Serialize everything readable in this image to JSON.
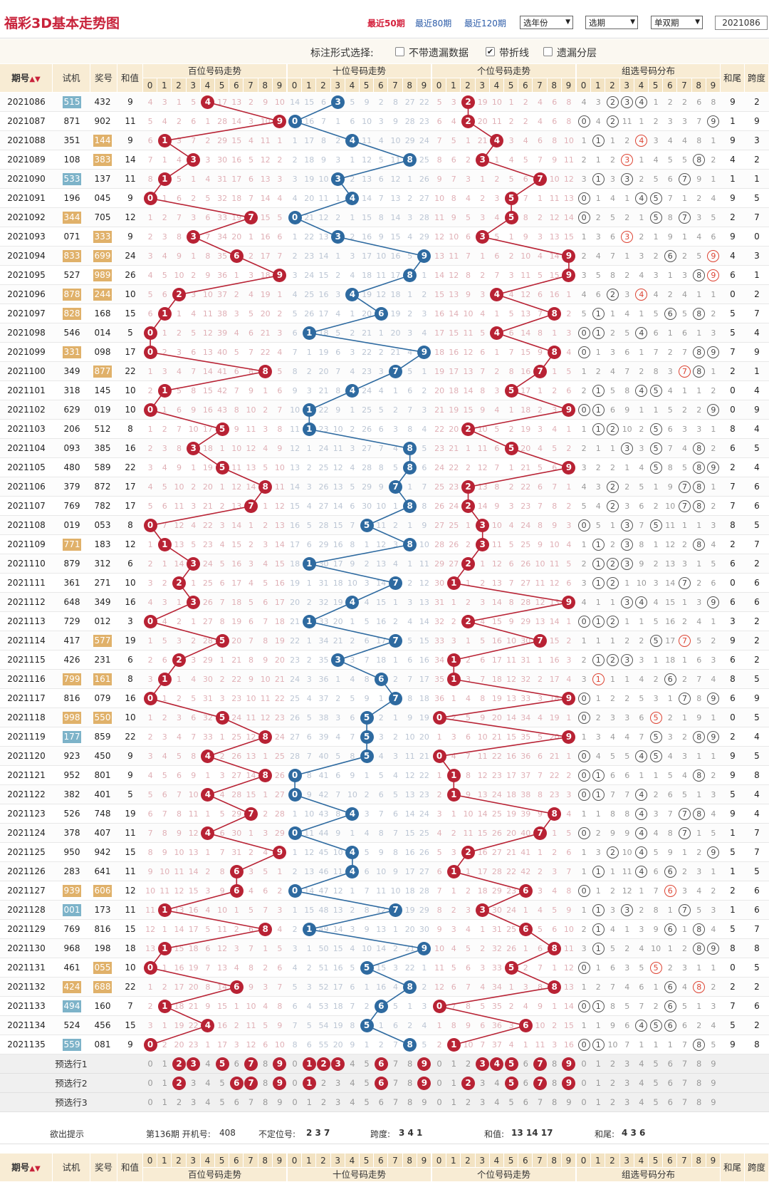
{
  "header": {
    "title": "福彩3D基本走势图",
    "periods": [
      "最近50期",
      "最近80期",
      "最近120期"
    ],
    "selects": [
      "选年份",
      "选期",
      "单双期"
    ],
    "issue_input": "2021086"
  },
  "options": {
    "label": "标注形式选择:",
    "items": [
      {
        "label": "不带遗漏数据",
        "checked": false
      },
      {
        "label": "带折线",
        "checked": true
      },
      {
        "label": "遗漏分层",
        "checked": false
      }
    ]
  },
  "columns": {
    "issue": "期号",
    "sort_icon": "sort-icon",
    "test": "试机",
    "prize": "奖号",
    "sum": "和值",
    "groups": [
      "百位号码走势",
      "十位号码走势",
      "个位号码走势",
      "组选号码分布"
    ],
    "tail": "和尾",
    "span": "跨度",
    "digits": [
      "0",
      "1",
      "2",
      "3",
      "4",
      "5",
      "6",
      "7",
      "8",
      "9"
    ]
  },
  "colors": {
    "hundreds": "#b82234",
    "tens": "#2e6aa0",
    "units": "#b82234",
    "test_group6": "#7db3c9",
    "test_group3": "#e0b16a"
  },
  "rows": [
    [
      "2021086",
      "515",
      "432",
      "6",
      "2"
    ],
    [
      "2021087",
      "871",
      "902",
      "0",
      "9"
    ],
    [
      "2021088",
      "351",
      "144",
      "3",
      "3"
    ],
    [
      "2021089",
      "108",
      "383",
      "3",
      "2"
    ],
    [
      "2021090",
      "533",
      "137",
      "6",
      "1"
    ],
    [
      "2021091",
      "196",
      "045",
      "6",
      "5"
    ],
    [
      "2021092",
      "344",
      "705",
      "3",
      "7"
    ],
    [
      "2021093",
      "071",
      "333",
      "3",
      "0"
    ],
    [
      "2021094",
      "833",
      "699",
      "3",
      "3"
    ],
    [
      "2021095",
      "527",
      "989",
      "3",
      "1"
    ],
    [
      "2021096",
      "878",
      "244",
      "3",
      "2"
    ],
    [
      "2021097",
      "828",
      "168",
      "3",
      "7"
    ],
    [
      "2021098",
      "546",
      "014",
      "6",
      "4"
    ],
    [
      "2021099",
      "331",
      "098",
      "3",
      "9"
    ],
    [
      "2021100",
      "349",
      "877",
      "3",
      "1"
    ],
    [
      "2021101",
      "318",
      "145",
      "6",
      "4"
    ],
    [
      "2021102",
      "629",
      "019",
      "6",
      "9"
    ],
    [
      "2021103",
      "206",
      "512",
      "6",
      "4"
    ],
    [
      "2021104",
      "093",
      "385",
      "6",
      "5"
    ],
    [
      "2021105",
      "480",
      "589",
      "6",
      "4"
    ],
    [
      "2021106",
      "379",
      "872",
      "6",
      "6"
    ],
    [
      "2021107",
      "769",
      "782",
      "6",
      "6"
    ],
    [
      "2021108",
      "019",
      "053",
      "6",
      "5"
    ],
    [
      "2021109",
      "771",
      "183",
      "3",
      "7"
    ],
    [
      "2021110",
      "879",
      "312",
      "6",
      "2"
    ],
    [
      "2021111",
      "361",
      "271",
      "6",
      "6"
    ],
    [
      "2021112",
      "648",
      "349",
      "6",
      "6"
    ],
    [
      "2021113",
      "729",
      "012",
      "6",
      "2"
    ],
    [
      "2021114",
      "417",
      "577",
      "3",
      "2"
    ],
    [
      "2021115",
      "426",
      "231",
      "6",
      "2"
    ],
    [
      "2021116",
      "799",
      "161",
      "3",
      "5"
    ],
    [
      "2021117",
      "816",
      "079",
      "6",
      "9"
    ],
    [
      "2021118",
      "998",
      "550",
      "3",
      "5"
    ],
    [
      "2021119",
      "177",
      "859",
      "6",
      "4"
    ],
    [
      "2021120",
      "923",
      "450",
      "6",
      "5"
    ],
    [
      "2021121",
      "952",
      "801",
      "6",
      "8"
    ],
    [
      "2021122",
      "382",
      "401",
      "6",
      "4"
    ],
    [
      "2021123",
      "526",
      "748",
      "6",
      "4"
    ],
    [
      "2021124",
      "378",
      "407",
      "6",
      "7"
    ],
    [
      "2021125",
      "950",
      "942",
      "6",
      "7"
    ],
    [
      "2021126",
      "283",
      "641",
      "6",
      "5"
    ],
    [
      "2021127",
      "939",
      "606",
      "3",
      "6"
    ],
    [
      "2021128",
      "001",
      "173",
      "6",
      "6"
    ],
    [
      "2021129",
      "769",
      "816",
      "6",
      "7"
    ],
    [
      "2021130",
      "968",
      "198",
      "6",
      "8"
    ],
    [
      "2021131",
      "461",
      "055",
      "3",
      "5"
    ],
    [
      "2021132",
      "424",
      "688",
      "3",
      "2"
    ],
    [
      "2021133",
      "494",
      "160",
      "6",
      "6"
    ],
    [
      "2021134",
      "524",
      "456",
      "6",
      "2"
    ],
    [
      "2021135",
      "559",
      "081",
      "6",
      "8"
    ]
  ],
  "misses": [
    [
      "4 3 1 5 ● 17 13 2 9 10",
      "14 15 6 ● 5 9 2 8 27 22",
      "5 3 ● 19 10 1 2 4 6 8",
      "4 3 ② ③ ④ 1 2 2 6 8"
    ],
    [
      "5 4 2 6 1 28 14 3 10 ●",
      "● 16 7 1 6 10 3 9 28 23",
      "6 4 ● 20 11 2 2 4 6 8",
      "⓪ 4 ② 11 1 2 3 3 7 ⑨"
    ],
    [
      "6 ● 3 7 2 29 15 4 11 1",
      "1 17 8 2 ● 11 4 10 29 24",
      "7 5 1 21 ● 3 4 6 8 10",
      "1 ① 1 2 ④ 3 4 4 8 1"
    ],
    [
      "7 1 4 ● 3 30 16 5 12 2",
      "2 18 9 3 1 12 5 11 ● 25",
      "8 6 2 ● 1 4 5 7 9 11",
      "2 1 2 ③ 1 4 5 5 ⑧ 2"
    ],
    [
      "8 ● 5 1 4 31 17 6 13 3",
      "3 19 10 ● 2 13 6 12 1 26",
      "9 7 3 1 2 5 6 ● 10 12",
      "3 ① 3 ③ 2 5 6 ⑦ 9 1"
    ],
    [
      "● 1 6 2 5 32 18 7 14 4",
      "4 20 11 1 ● 14 7 13 2 27",
      "10 8 4 2 3 ● 7 1 11 13",
      "⓪ 1 4 1 ④ ⑤ 7 1 2 4"
    ],
    [
      "1 2 7 3 6 33 19 ● 15 5",
      "● 21 12 2 1 15 8 14 3 28",
      "11 9 5 3 4 ● 8 2 12 14",
      "⓪ 2 5 2 1 ⑤ 8 ⑦ 3 5"
    ],
    [
      "2 3 8 ● 7 34 20 1 16 6",
      "1 22 13 ● 2 16 9 15 4 29",
      "12 10 6 ● 5 1 9 3 13 15",
      "1 3 6 ③ 2 1 9 1 4 6"
    ],
    [
      "3 4 9 1 8 35 ● 2 17 7",
      "2 23 14 1 3 17 10 16 5 ●",
      "13 11 7 1 6 2 10 4 14 ●",
      "2 4 7 1 3 2 ⑥ 2 5 ⑨"
    ],
    [
      "4 5 10 2 9 36 1 3 18 ●",
      "3 24 15 2 4 18 11 17 ● 1",
      "14 12 8 2 7 3 11 5 15 ●",
      "3 5 8 2 4 3 1 3 ⑧ ⑨"
    ],
    [
      "5 6 ● 3 10 37 2 4 19 1",
      "4 25 16 3 ● 19 12 18 1 2",
      "15 13 9 3 ● 4 12 6 16 1",
      "4 6 ② 3 ④ 4 2 4 1 1"
    ],
    [
      "6 ● 1 4 11 38 3 5 20 2",
      "5 26 17 4 1 20 ● 19 2 3",
      "16 14 10 4 1 5 13 7 ● 2",
      "5 ① 1 4 1 5 ⑥ 5 ⑧ 2"
    ],
    [
      "● 1 2 5 12 39 4 6 21 3",
      "6 ● 18 5 2 21 1 20 3 4",
      "17 15 11 5 ● 6 14 8 1 3",
      "⓪ ① 2 5 ④ 6 1 6 1 3"
    ],
    [
      "● 2 3 6 13 40 5 7 22 4",
      "7 1 19 6 3 22 2 21 4 ●",
      "18 16 12 6 1 7 15 9 ● 4",
      "⓪ 1 3 6 1 7 2 7 ⑧ ⑨"
    ],
    [
      "1 3 4 7 14 41 6 8 ● 5",
      "8 2 20 7 4 23 3 ● 5 1",
      "19 17 13 7 2 8 16 ● 1 5",
      "1 2 4 7 2 8 3 ⑦ ⑧ 1"
    ],
    [
      "2 ● 5 8 15 42 7 9 1 6",
      "9 3 21 8 ● 24 4 1 6 2",
      "20 18 14 8 3 ● 17 1 2 6",
      "2 ① 5 8 ④ ⑤ 4 1 1 2"
    ],
    [
      "● 1 6 9 16 43 8 10 2 7",
      "10 ● 22 9 1 25 5 2 7 3",
      "21 19 15 9 4 1 18 2 3 ●",
      "⓪ ① 6 9 1 1 5 2 2 ⑨"
    ],
    [
      "1 2 7 10 17 ● 9 11 3 8",
      "11 ● 23 10 2 26 6 3 8 4",
      "22 20 ● 10 5 2 19 3 4 1",
      "1 ① ② 10 2 ⑤ 6 3 3 1"
    ],
    [
      "2 3 8 ● 18 1 10 12 4 9",
      "12 1 24 11 3 27 7 4 ● 5",
      "23 21 1 11 6 ● 20 4 5 2",
      "2 1 1 ③ 3 ⑤ 7 4 ⑧ 2"
    ],
    [
      "3 4 9 1 19 ● 11 13 5 10",
      "13 2 25 12 4 28 8 5 ● 6",
      "24 22 2 12 7 1 21 5 6 ●",
      "3 2 2 1 4 ⑤ 8 5 ⑧ ⑨"
    ],
    [
      "4 5 10 2 20 1 12 14 ● 11",
      "14 3 26 13 5 29 9 ● 1 7",
      "25 23 ● 13 8 2 22 6 7 1",
      "4 3 ② 2 5 1 9 ⑦ ⑧ 1"
    ],
    [
      "5 6 11 3 21 2 13 ● 1 12",
      "15 4 27 14 6 30 10 1 ● 8",
      "26 24 ● 14 9 3 23 7 8 2",
      "5 4 ② 3 6 2 10 ⑦ ⑧ 2"
    ],
    [
      "● 7 12 4 22 3 14 1 2 13",
      "16 5 28 15 7 ● 11 2 1 9",
      "27 25 1 ● 10 4 24 8 9 3",
      "⓪ 5 1 ③ 7 ⑤ 11 1 1 3"
    ],
    [
      "1 ● 13 5 23 4 15 2 3 14",
      "17 6 29 16 8 1 12 3 ● 10",
      "28 26 2 ● 11 5 25 9 10 4",
      "1 ① 2 ③ 8 1 12 2 ⑧ 4"
    ],
    [
      "2 1 14 ● 24 5 16 3 4 15",
      "18 ● 30 17 9 2 13 4 1 11",
      "29 27 ● 1 12 6 26 10 11 5",
      "2 ① ② ③ 9 2 13 3 1 5"
    ],
    [
      "3 2 ● 1 25 6 17 4 5 16",
      "19 1 31 18 10 3 14 ● 2 12",
      "30 ● 1 2 13 7 27 11 12 6",
      "3 ① ② 1 10 3 14 ⑦ 2 6"
    ],
    [
      "4 3 1 ● 26 7 18 5 6 17",
      "20 2 32 19 ● 4 15 1 3 13",
      "31 1 2 3 14 8 28 12 13 ●",
      "4 1 1 ③ ④ 4 15 1 3 ⑨"
    ],
    [
      "● 4 2 1 27 8 19 6 7 18",
      "21 ● 33 20 1 5 16 2 4 14",
      "32 2 ● 4 15 9 29 13 14 1",
      "⓪ ① ② 1 1 5 16 2 4 1"
    ],
    [
      "1 5 3 2 28 ● 20 7 8 19",
      "22 1 34 21 2 6 17 ● 5 15",
      "33 3 1 5 16 10 30 ● 15 2",
      "1 1 1 2 2 ⑤ 17 ⑦ 5 2"
    ],
    [
      "2 6 ● 3 29 1 21 8 9 20",
      "23 2 35 ● 3 7 18 1 6 16",
      "34 ● 2 6 17 11 31 1 16 3",
      "2 ① ② ③ 3 1 18 1 6 3"
    ],
    [
      "3 ● 1 4 30 2 22 9 10 21",
      "24 3 36 1 4 8 ● 2 7 17",
      "35 ● 3 7 18 12 32 2 17 4",
      "3 ① 1 1 4 2 ⑥ 2 7 4"
    ],
    [
      "● 1 2 5 31 3 23 10 11 22",
      "25 4 37 2 5 9 1 ● 8 18",
      "36 1 4 8 19 13 33 3 18 ●",
      "⓪ 1 2 2 5 3 1 ⑦ 8 ⑨"
    ],
    [
      "1 2 3 6 32 ● 24 11 12 23",
      "26 5 38 3 6 ● 2 1 9 19",
      "● 2 5 9 20 14 34 4 19 1",
      "⓪ 2 3 3 6 ⑤ 2 1 9 1"
    ],
    [
      "2 3 4 7 33 1 25 12 ● 24",
      "27 6 39 4 7 ● 3 2 10 20",
      "1 3 6 10 21 15 35 5 20 ●",
      "1 3 4 4 7 ⑤ 3 2 ⑧ ⑨"
    ],
    [
      "3 4 5 8 ● 2 26 13 1 25",
      "28 7 40 5 8 ● 4 3 11 21",
      "● 4 7 11 22 16 36 6 21 1",
      "⓪ 4 5 5 ④ ⑤ 4 3 1 1"
    ],
    [
      "4 5 6 9 1 3 27 14 ● 26",
      "● 8 41 6 9 1 5 4 12 22",
      "1 ● 8 12 23 17 37 7 22 2",
      "⓪ ① 6 6 1 1 5 4 ⑧ 2"
    ],
    [
      "5 6 7 10 ● 4 28 15 1 27",
      "● 9 42 7 10 2 6 5 13 23",
      "2 ● 9 13 24 18 38 8 23 3",
      "⓪ ① 7 7 ④ 2 6 5 1 3"
    ],
    [
      "6 7 8 11 1 5 29 ● 2 28",
      "1 10 43 8 ● 3 7 6 14 24",
      "3 1 10 14 25 19 39 9 ● 4",
      "1 1 8 8 ④ 3 7 ⑦ ⑧ 4"
    ],
    [
      "7 8 9 12 ● 6 30 1 3 29",
      "● 11 44 9 1 4 8 7 15 25",
      "4 2 11 15 26 20 40 ● 1 5",
      "⓪ 2 9 9 ④ 4 8 ⑦ 1 5"
    ],
    [
      "8 9 10 13 1 7 31 2 4 ●",
      "1 12 45 10 ● 5 9 8 16 26",
      "5 3 ● 16 27 21 41 1 2 6",
      "1 3 ② 10 ④ 5 9 1 2 ⑨"
    ],
    [
      "9 10 11 14 2 8 ● 3 5 1",
      "2 13 46 11 ● 6 10 9 17 27",
      "6 ● 1 17 28 22 42 2 3 7",
      "1 ① 1 11 ④ 6 ⑥ 2 3 1"
    ],
    [
      "10 11 12 15 3 9 ● 4 6 2",
      "● 14 47 12 1 7 11 10 18 28",
      "7 1 2 18 29 23 ● 3 4 8",
      "⓪ 1 2 12 1 7 ⑥ 3 4 2"
    ],
    [
      "11 ● 13 16 4 10 1 5 7 3",
      "1 15 48 13 2 8 12 ● 19 29",
      "8 2 3 ● 30 24 1 4 5 9",
      "1 ① 3 ③ 2 8 1 ⑦ 5 3"
    ],
    [
      "12 1 14 17 5 11 2 6 ● 4",
      "2 ● 49 14 3 9 13 1 20 30",
      "9 3 4 1 31 25 ● 5 6 10",
      "2 ① 4 1 3 9 ⑥ 1 ⑧ 4"
    ],
    [
      "13 ● 15 18 6 12 3 7 1 5",
      "3 1 50 15 4 10 14 2 21 ●",
      "10 4 5 2 32 26 1 6 ● 11",
      "3 ① 5 2 4 10 1 2 ⑧ ⑨"
    ],
    [
      "● 1 16 19 7 13 4 8 2 6",
      "4 2 51 16 5 ● 15 3 22 1",
      "11 5 6 3 33 ● 2 7 1 12",
      "⓪ 1 6 3 5 ⑤ 2 3 1 1"
    ],
    [
      "1 2 17 20 8 14 ● 9 3 7",
      "5 3 52 17 6 1 16 4 ● 2",
      "12 6 7 4 34 1 3 8 ● 13",
      "1 2 7 4 6 1 ⑥ 4 ⑧ 2"
    ],
    [
      "2 ● 18 21 9 15 1 10 4 8",
      "6 4 53 18 7 2 ● 5 1 3",
      "● 7 8 5 35 2 4 9 1 14",
      "⓪ ① 8 5 7 2 ⑥ 5 1 3"
    ],
    [
      "3 1 19 22 ● 16 2 11 5 9",
      "7 5 54 19 8 ● 1 6 2 4",
      "1 8 9 6 36 3 ● 10 2 15",
      "1 1 9 6 ④ ⑤ ⑥ 6 2 4"
    ],
    [
      "● 2 20 23 1 17 3 12 6 10",
      "8 6 55 20 9 1 2 7 ● 5",
      "2 ● 10 7 37 4 1 11 3 16",
      "⓪ ① 10 7 1 1 1 7 ⑧ 5"
    ]
  ],
  "preselect": [
    {
      "label": "预选行1",
      "picked": [
        [
          2,
          3,
          5,
          7,
          9
        ],
        [
          1,
          2,
          3,
          6,
          9
        ],
        [
          3,
          4,
          5,
          7,
          9
        ],
        []
      ]
    },
    {
      "label": "预选行2",
      "picked": [
        [
          2,
          6,
          7,
          9
        ],
        [
          1,
          6,
          9
        ],
        [
          2,
          5,
          7,
          9
        ],
        []
      ]
    },
    {
      "label": "预选行3",
      "picked": [
        [],
        [],
        [],
        []
      ]
    }
  ],
  "hint": {
    "label": "欲出提示",
    "next_prefix": "第136期 开机号:",
    "next_value": "408",
    "uncertain_label": "不定位号:",
    "uncertain_value": "2 3 7",
    "span_label": "跨度:",
    "span_value": "3 4 1",
    "sum_label": "和值:",
    "sum_value": "13 14 17",
    "tail_label": "和尾:",
    "tail_value": "4 3 6"
  }
}
